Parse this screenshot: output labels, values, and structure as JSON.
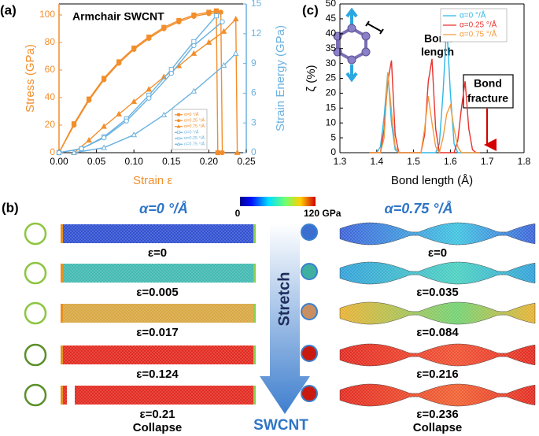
{
  "chart_data": [
    {
      "type": "line",
      "panel_label": "(a)",
      "title": "Armchair  SWCNT",
      "xlabel": "Strain ε",
      "ylabel": "Stress (GPa)",
      "y2label": "Strain Energy (GPa)",
      "y_color": "#f28e2b",
      "y2_color": "#6bb2e0",
      "xlim": [
        0,
        0.25
      ],
      "ylim": [
        0,
        108
      ],
      "y2lim": [
        0,
        15
      ],
      "xticks": [
        {
          "value": 0,
          "label": "0.00"
        },
        0.05,
        {
          "value": 0.1,
          "label": "0.10"
        },
        0.15,
        {
          "value": 0.2,
          "label": "0.20"
        },
        0.25
      ],
      "yticks": [
        0,
        20,
        40,
        60,
        80,
        100
      ],
      "y2ticks": [
        0,
        3,
        6,
        9,
        12,
        15
      ],
      "legend": "lower right",
      "series": [
        {
          "name": "α=0 °/Å",
          "color": "#f28e2b",
          "marker": "square",
          "marker_filled": true,
          "x": [
            0,
            0.02,
            0.04,
            0.06,
            0.08,
            0.1,
            0.12,
            0.14,
            0.16,
            0.18,
            0.2,
            0.21,
            0.212
          ],
          "values": [
            0,
            21,
            39,
            54,
            66,
            76,
            84,
            91,
            96,
            100,
            102,
            103,
            0
          ]
        },
        {
          "name": "α=0.25 °/Å",
          "color": "#f28e2b",
          "marker": "circle",
          "marker_filled": true,
          "x": [
            0,
            0.02,
            0.04,
            0.06,
            0.08,
            0.1,
            0.12,
            0.14,
            0.16,
            0.18,
            0.2,
            0.216,
            0.218
          ],
          "values": [
            0,
            20,
            38,
            53,
            65,
            75,
            83,
            90,
            95,
            99,
            101,
            102,
            0
          ]
        },
        {
          "name": "α=0.75 °/Å",
          "color": "#f28e2b",
          "marker": "triangle",
          "marker_filled": true,
          "x": [
            0.02,
            0.04,
            0.06,
            0.08,
            0.1,
            0.12,
            0.14,
            0.16,
            0.18,
            0.2,
            0.22,
            0.236,
            0.238
          ],
          "values": [
            0,
            9,
            19,
            28,
            37,
            46,
            55,
            63,
            72,
            80,
            88,
            97,
            0
          ]
        },
        {
          "name": "α=0 °/Å",
          "color": "#6bb2e0",
          "marker": "square",
          "marker_filled": false,
          "axis": "y2",
          "x": [
            0,
            0.03,
            0.06,
            0.09,
            0.12,
            0.15,
            0.18,
            0.21
          ],
          "values": [
            0,
            0.4,
            1.6,
            3.4,
            5.8,
            8.4,
            11.2,
            13.8
          ]
        },
        {
          "name": "α=0.25 °/Å",
          "color": "#6bb2e0",
          "marker": "circle",
          "marker_filled": false,
          "axis": "y2",
          "x": [
            0,
            0.03,
            0.06,
            0.09,
            0.12,
            0.15,
            0.18,
            0.218
          ],
          "values": [
            0,
            0.4,
            1.5,
            3.2,
            5.5,
            8,
            10.8,
            13.2
          ]
        },
        {
          "name": "α=0.75 °/Å",
          "color": "#6bb2e0",
          "marker": "triangle",
          "marker_filled": false,
          "axis": "y2",
          "x": [
            0.02,
            0.06,
            0.1,
            0.14,
            0.18,
            0.22,
            0.236
          ],
          "values": [
            0,
            0.5,
            1.8,
            3.8,
            6.2,
            8.8,
            10
          ]
        }
      ]
    },
    {
      "type": "line",
      "panel_label": "(c)",
      "xlabel": "Bond length (Å)",
      "ylabel": "ζ (%)",
      "xlim": [
        1.3,
        1.8
      ],
      "ylim": [
        0,
        50
      ],
      "xticks": [
        1.3,
        1.4,
        1.5,
        1.6,
        1.7,
        1.8
      ],
      "yticks": [
        0,
        5,
        10,
        15,
        20,
        25,
        30,
        35,
        40,
        45,
        50
      ],
      "legend": "upper right",
      "annotations": [
        "Bond",
        "length",
        "Bond",
        "fracture"
      ],
      "x": [
        1.38,
        1.39,
        1.4,
        1.41,
        1.42,
        1.43,
        1.44,
        1.45,
        1.46,
        1.47,
        1.48,
        1.49,
        1.5,
        1.51,
        1.52,
        1.53,
        1.54,
        1.55,
        1.56,
        1.57,
        1.58,
        1.59,
        1.6,
        1.61,
        1.62,
        1.63,
        1.64,
        1.65,
        1.66,
        1.67,
        1.68
      ],
      "series": [
        {
          "name": "α=0 °/Å",
          "color": "#2eb8e6",
          "values": [
            0,
            0,
            0,
            2,
            12,
            27,
            10,
            1,
            0,
            0,
            0,
            0,
            0,
            0,
            0,
            0,
            0,
            0,
            0,
            3,
            20,
            43,
            20,
            3,
            0,
            0,
            0,
            0,
            0,
            0,
            0
          ]
        },
        {
          "name": "α=0.25 °/Å",
          "color": "#e8322f",
          "values": [
            0,
            0,
            0,
            0,
            8,
            24,
            31,
            6,
            0,
            0,
            0,
            0,
            0,
            0,
            0,
            6,
            24,
            31.5,
            8,
            0,
            0,
            0,
            0,
            0,
            4,
            15,
            24,
            8,
            1,
            0,
            0
          ]
        },
        {
          "name": "α=0.75 °/Å",
          "color": "#f39a3d",
          "values": [
            0,
            0,
            0,
            0,
            5,
            27,
            14,
            2,
            0,
            0,
            0,
            0,
            0,
            0,
            0,
            8,
            19,
            10,
            2,
            0,
            5,
            13,
            16,
            8,
            2,
            0,
            0,
            0,
            0,
            0,
            0
          ]
        }
      ]
    }
  ],
  "panel_b": {
    "label": "(b)",
    "left_title": "α=0 °/Å",
    "right_title": "α=0.75 °/Å",
    "colorbar_min": "0",
    "colorbar_max": "120 GPa",
    "center_arrow": "Stretch",
    "center_label": "SWCNT",
    "left_rows": [
      "ε=0",
      "ε=0.005",
      "ε=0.017",
      "ε=0.124",
      "ε=0.21"
    ],
    "left_note": "Collapse",
    "right_rows": [
      "ε=0",
      "ε=0.035",
      "ε=0.084",
      "ε=0.216",
      "ε=0.236"
    ],
    "right_note": "Collapse"
  }
}
